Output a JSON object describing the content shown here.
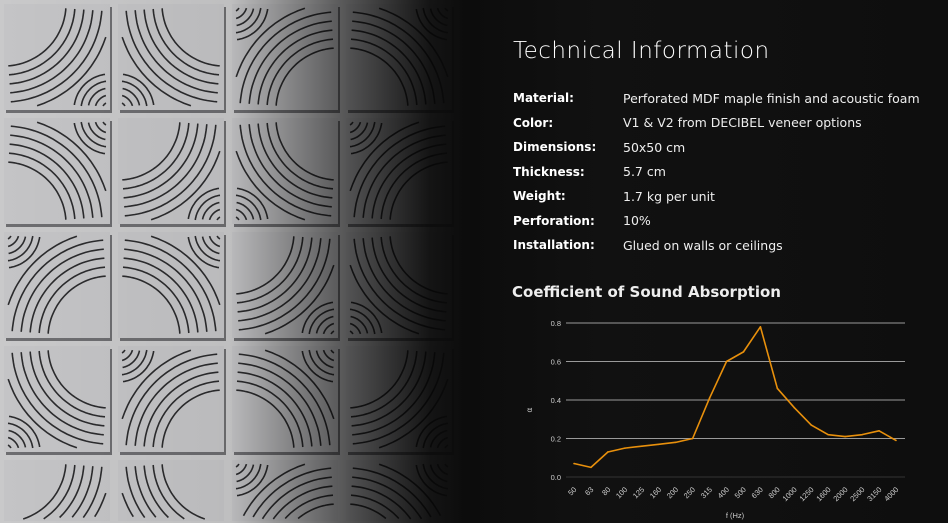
{
  "title": "Technical Information",
  "specs": [
    {
      "label": "Material:",
      "value": "Perforated MDF maple finish and acoustic foam"
    },
    {
      "label": "Color:",
      "value": "V1 & V2 from DECIBEL veneer options"
    },
    {
      "label": "Dimensions:",
      "value": "50x50 cm"
    },
    {
      "label": "Thickness:",
      "value": "5.7 cm"
    },
    {
      "label": "Weight:",
      "value": "1.7 kg per unit"
    },
    {
      "label": "Perforation:",
      "value": "10%"
    },
    {
      "label": "Installation:",
      "value": "Glued on walls or ceilings"
    }
  ],
  "chart_title": "Coefficient of Sound Absorption",
  "chart_data": {
    "type": "line",
    "title": "Coefficient of Sound Absorption",
    "xlabel": "f (Hz)",
    "ylabel": "α",
    "categories": [
      "50",
      "63",
      "80",
      "100",
      "125",
      "160",
      "200",
      "250",
      "315",
      "400",
      "500",
      "630",
      "800",
      "1000",
      "1250",
      "1600",
      "2000",
      "2500",
      "3150",
      "4000"
    ],
    "values": [
      0.07,
      0.05,
      0.13,
      0.15,
      0.16,
      0.17,
      0.18,
      0.2,
      0.41,
      0.6,
      0.65,
      0.78,
      0.46,
      0.36,
      0.27,
      0.22,
      0.21,
      0.22,
      0.24,
      0.19
    ],
    "ylim": [
      0,
      0.8
    ],
    "yticks": [
      "0.0",
      "0.2",
      "0.4",
      "0.6",
      "0.8"
    ],
    "grid": true,
    "line_color": "#e8900c"
  }
}
